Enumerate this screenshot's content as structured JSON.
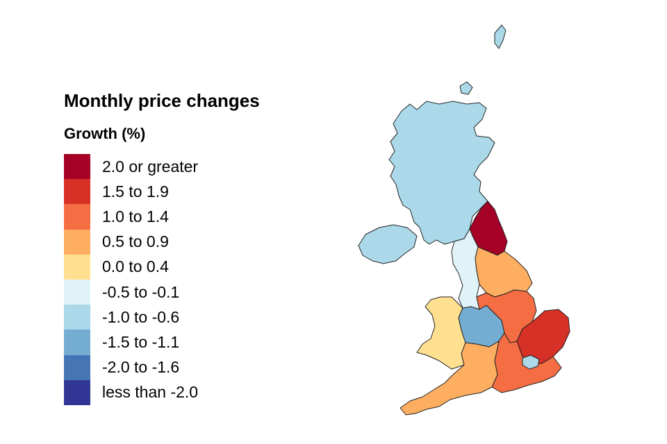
{
  "title": "Monthly price changes",
  "subtitle": "Growth (%)",
  "legend": {
    "items": [
      {
        "label": "2.0 or greater",
        "color": "#a50026"
      },
      {
        "label": "1.5 to 1.9",
        "color": "#d73027"
      },
      {
        "label": "1.0 to 1.4",
        "color": "#f46d43"
      },
      {
        "label": "0.5 to 0.9",
        "color": "#fdae61"
      },
      {
        "label": "0.0 to 0.4",
        "color": "#fee090"
      },
      {
        "label": "-0.5 to -0.1",
        "color": "#e0f3f8"
      },
      {
        "label": "-1.0 to -0.6",
        "color": "#abd9e9"
      },
      {
        "label": "-1.5 to -1.1",
        "color": "#74add1"
      },
      {
        "label": "-2.0 to -1.6",
        "color": "#4575b4"
      },
      {
        "label": "less than -2.0",
        "color": "#313695"
      }
    ]
  },
  "regions": {
    "scotland": {
      "color": "#abd9e9"
    },
    "northern_ireland": {
      "color": "#abd9e9"
    },
    "north_east": {
      "color": "#a50026"
    },
    "north_west": {
      "color": "#e0f3f8"
    },
    "yorkshire": {
      "color": "#fdae61"
    },
    "wales": {
      "color": "#fee090"
    },
    "west_midlands": {
      "color": "#74add1"
    },
    "east_midlands": {
      "color": "#f46d43"
    },
    "east": {
      "color": "#d73027"
    },
    "london": {
      "color": "#abd9e9"
    },
    "south_east": {
      "color": "#f46d43"
    },
    "south_west": {
      "color": "#fdae61"
    }
  }
}
